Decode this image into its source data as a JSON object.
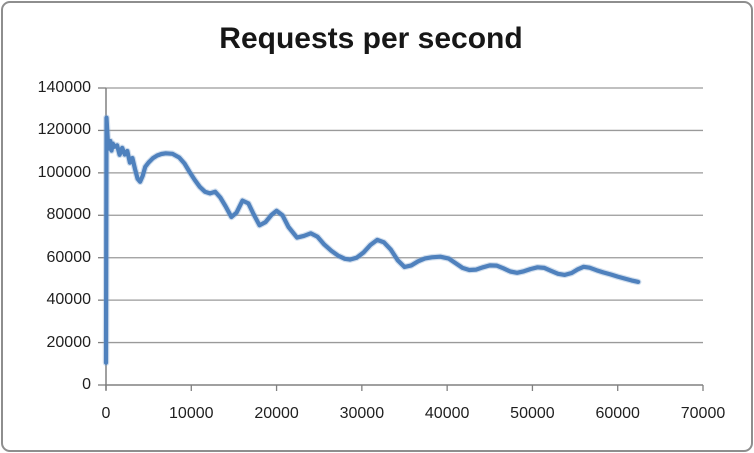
{
  "title": "Requests per second",
  "styles": {
    "line_color": "#4F81BD",
    "line_halo_color": "#7FA4CF",
    "grid_color": "#9a9a9a",
    "axis_color": "#808080",
    "tick_color": "#808080",
    "frame_border_color": "#8E8E8E",
    "text_color": "#1F1F1F",
    "background": "#FFFFFF"
  },
  "chart_data": {
    "type": "line",
    "title": "Requests per second",
    "xlabel": "",
    "ylabel": "",
    "xlim": [
      0,
      70000
    ],
    "ylim": [
      0,
      140000
    ],
    "x_ticks": [
      0,
      10000,
      20000,
      30000,
      40000,
      50000,
      60000,
      70000
    ],
    "y_ticks": [
      0,
      20000,
      40000,
      60000,
      80000,
      100000,
      120000,
      140000
    ],
    "grid": "horizontal-only",
    "legend": "none",
    "series": [
      {
        "name": "Requests per second",
        "color": "#4F81BD",
        "points": [
          [
            0,
            10500
          ],
          [
            60,
            126000
          ],
          [
            200,
            116000
          ],
          [
            350,
            111500
          ],
          [
            500,
            115000
          ],
          [
            650,
            110500
          ],
          [
            800,
            113800
          ],
          [
            1000,
            112300
          ],
          [
            1300,
            113000
          ],
          [
            1600,
            108500
          ],
          [
            1900,
            111800
          ],
          [
            2200,
            108600
          ],
          [
            2500,
            110300
          ],
          [
            2800,
            104800
          ],
          [
            3100,
            107000
          ],
          [
            3400,
            101800
          ],
          [
            3700,
            97200
          ],
          [
            4000,
            95800
          ],
          [
            4300,
            98600
          ],
          [
            4600,
            102800
          ],
          [
            5000,
            104900
          ],
          [
            5500,
            106900
          ],
          [
            6000,
            108200
          ],
          [
            6500,
            108900
          ],
          [
            7000,
            109200
          ],
          [
            7800,
            109000
          ],
          [
            8600,
            107200
          ],
          [
            9200,
            104400
          ],
          [
            9800,
            100400
          ],
          [
            10400,
            96700
          ],
          [
            11000,
            93400
          ],
          [
            11600,
            91100
          ],
          [
            12200,
            90300
          ],
          [
            12800,
            91100
          ],
          [
            13400,
            88400
          ],
          [
            14000,
            84400
          ],
          [
            14700,
            79200
          ],
          [
            15300,
            81200
          ],
          [
            16000,
            86900
          ],
          [
            16700,
            85600
          ],
          [
            17300,
            80600
          ],
          [
            18000,
            75300
          ],
          [
            18700,
            76800
          ],
          [
            19400,
            80200
          ],
          [
            20000,
            82100
          ],
          [
            20700,
            80000
          ],
          [
            21400,
            74500
          ],
          [
            22400,
            69500
          ],
          [
            23200,
            70300
          ],
          [
            24000,
            71500
          ],
          [
            24800,
            69900
          ],
          [
            25600,
            66200
          ],
          [
            26400,
            63300
          ],
          [
            27200,
            61000
          ],
          [
            28000,
            59500
          ],
          [
            28600,
            59100
          ],
          [
            29400,
            60000
          ],
          [
            30200,
            62500
          ],
          [
            31000,
            66000
          ],
          [
            31800,
            68400
          ],
          [
            32600,
            67200
          ],
          [
            33400,
            63800
          ],
          [
            34200,
            58800
          ],
          [
            35000,
            55600
          ],
          [
            35800,
            56400
          ],
          [
            36600,
            58300
          ],
          [
            37400,
            59700
          ],
          [
            38200,
            60200
          ],
          [
            39200,
            60500
          ],
          [
            40200,
            59600
          ],
          [
            41000,
            57400
          ],
          [
            41800,
            55200
          ],
          [
            42600,
            54200
          ],
          [
            43400,
            54400
          ],
          [
            44200,
            55500
          ],
          [
            45000,
            56400
          ],
          [
            45800,
            56300
          ],
          [
            46600,
            55000
          ],
          [
            47400,
            53500
          ],
          [
            48200,
            52900
          ],
          [
            49000,
            53600
          ],
          [
            49800,
            54700
          ],
          [
            50600,
            55500
          ],
          [
            51400,
            55200
          ],
          [
            52200,
            53800
          ],
          [
            53000,
            52400
          ],
          [
            53800,
            51900
          ],
          [
            54600,
            52800
          ],
          [
            55300,
            54500
          ],
          [
            56000,
            55700
          ],
          [
            56700,
            55300
          ],
          [
            57500,
            54100
          ],
          [
            58300,
            53100
          ],
          [
            59200,
            52100
          ],
          [
            60000,
            51100
          ],
          [
            60800,
            50200
          ],
          [
            61600,
            49300
          ],
          [
            62400,
            48600
          ]
        ]
      }
    ]
  }
}
